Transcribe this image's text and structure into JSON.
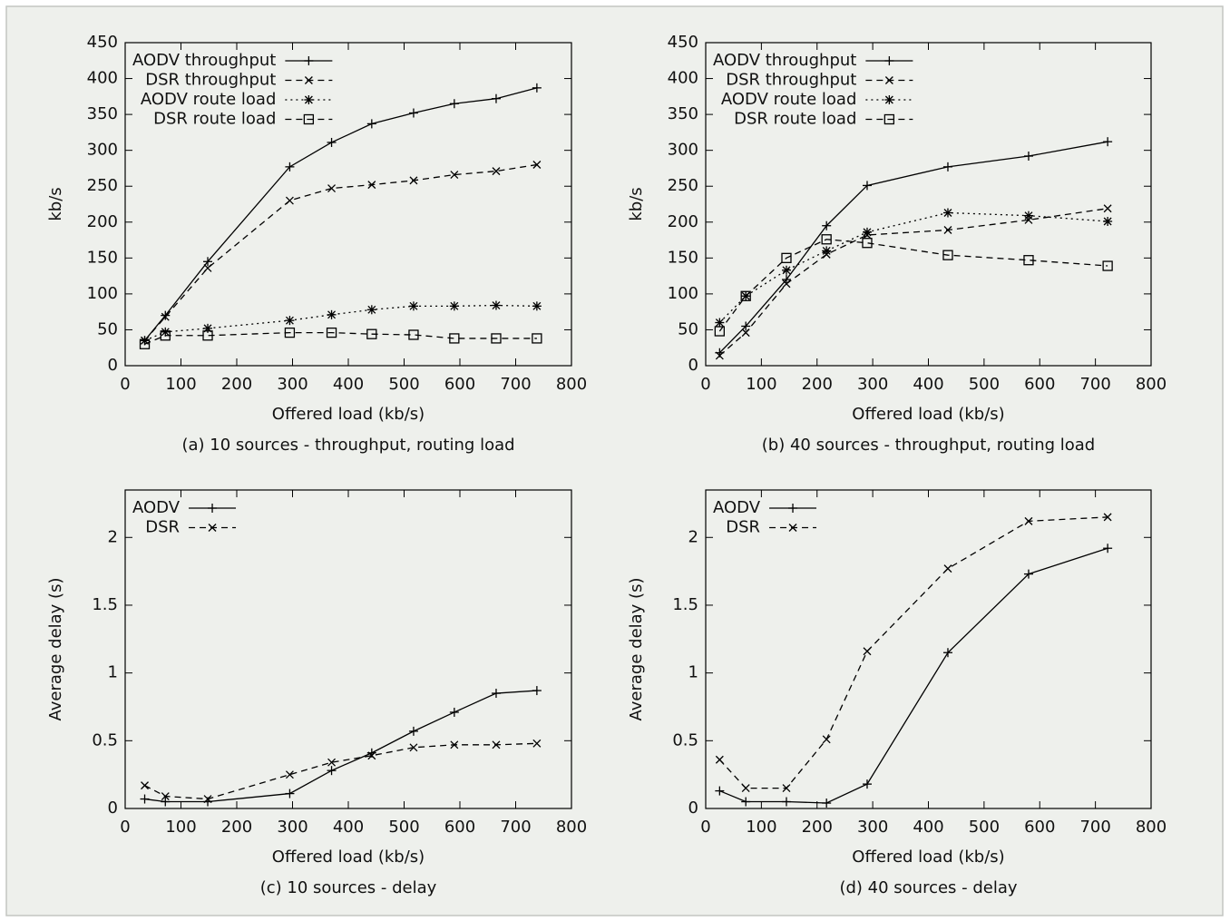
{
  "chart_data": [
    {
      "type": "line",
      "caption": "(a) 10 sources - throughput, routing load",
      "xlabel": "Offered load (kb/s)",
      "ylabel": "kb/s",
      "x": [
        35,
        72,
        148,
        295,
        370,
        442,
        517,
        590,
        665,
        738
      ],
      "series": [
        {
          "name": "AODV throughput",
          "color": "#000000",
          "dash": "solid",
          "marker": "plus",
          "values": [
            35,
            70,
            145,
            277,
            311,
            337,
            352,
            365,
            372,
            387
          ]
        },
        {
          "name": "DSR throughput",
          "color": "#000000",
          "dash": "dashed",
          "marker": "cross",
          "values": [
            35,
            68,
            136,
            230,
            247,
            252,
            258,
            266,
            271,
            280
          ]
        },
        {
          "name": "AODV route load",
          "color": "#000000",
          "dash": "dotted",
          "marker": "star",
          "values": [
            35,
            47,
            52,
            63,
            71,
            78,
            83,
            83,
            84,
            83
          ]
        },
        {
          "name": "DSR route load",
          "color": "#000000",
          "dash": "dashed",
          "marker": "square",
          "values": [
            30,
            42,
            42,
            46,
            46,
            44,
            43,
            38,
            38,
            38
          ]
        }
      ],
      "xlim": [
        0,
        800
      ],
      "xticks": [
        0,
        100,
        200,
        300,
        400,
        500,
        600,
        700,
        800
      ],
      "ylim": [
        0,
        450
      ],
      "yticks": [
        0,
        50,
        100,
        150,
        200,
        250,
        300,
        350,
        400,
        450
      ],
      "legend": "top left"
    },
    {
      "type": "line",
      "caption": "(b) 40 sources - throughput, routing load",
      "xlabel": "Offered load (kb/s)",
      "ylabel": "kb/s",
      "x": [
        25,
        72,
        145,
        217,
        290,
        435,
        580,
        722
      ],
      "series": [
        {
          "name": "AODV throughput",
          "color": "#000000",
          "dash": "solid",
          "marker": "plus",
          "values": [
            18,
            55,
            120,
            195,
            251,
            277,
            292,
            312
          ]
        },
        {
          "name": "DSR throughput",
          "color": "#000000",
          "dash": "dashed",
          "marker": "cross",
          "values": [
            14,
            46,
            114,
            155,
            182,
            189,
            203,
            219
          ]
        },
        {
          "name": "AODV route load",
          "color": "#000000",
          "dash": "dotted",
          "marker": "star",
          "values": [
            60,
            97,
            133,
            160,
            186,
            213,
            209,
            201
          ]
        },
        {
          "name": "DSR route load",
          "color": "#000000",
          "dash": "dashed",
          "marker": "square",
          "values": [
            48,
            97,
            150,
            176,
            171,
            154,
            147,
            139
          ]
        }
      ],
      "xlim": [
        0,
        800
      ],
      "xticks": [
        0,
        100,
        200,
        300,
        400,
        500,
        600,
        700,
        800
      ],
      "ylim": [
        0,
        450
      ],
      "yticks": [
        0,
        50,
        100,
        150,
        200,
        250,
        300,
        350,
        400,
        450
      ],
      "legend": "top left"
    },
    {
      "type": "line",
      "caption": "(c) 10 sources - delay",
      "xlabel": "Offered load (kb/s)",
      "ylabel": "Average delay (s)",
      "x": [
        35,
        72,
        148,
        295,
        370,
        442,
        517,
        590,
        665,
        738
      ],
      "series": [
        {
          "name": "AODV",
          "color": "#000000",
          "dash": "solid",
          "marker": "plus",
          "values": [
            0.07,
            0.05,
            0.05,
            0.11,
            0.28,
            0.41,
            0.57,
            0.71,
            0.85,
            0.87
          ]
        },
        {
          "name": "DSR",
          "color": "#000000",
          "dash": "dashed",
          "marker": "cross",
          "values": [
            0.17,
            0.09,
            0.07,
            0.25,
            0.34,
            0.39,
            0.45,
            0.47,
            0.47,
            0.48
          ]
        }
      ],
      "xlim": [
        0,
        800
      ],
      "xticks": [
        0,
        100,
        200,
        300,
        400,
        500,
        600,
        700,
        800
      ],
      "ylim": [
        0,
        2.35
      ],
      "yticks": [
        0,
        0.5,
        1,
        1.5,
        2
      ],
      "legend": "top left"
    },
    {
      "type": "line",
      "caption": "(d) 40 sources - delay",
      "xlabel": "Offered load (kb/s)",
      "ylabel": "Average delay (s)",
      "x": [
        25,
        72,
        145,
        217,
        290,
        435,
        580,
        722
      ],
      "series": [
        {
          "name": "AODV",
          "color": "#000000",
          "dash": "solid",
          "marker": "plus",
          "values": [
            0.13,
            0.05,
            0.05,
            0.04,
            0.18,
            1.15,
            1.73,
            1.92
          ]
        },
        {
          "name": "DSR",
          "color": "#000000",
          "dash": "dashed",
          "marker": "cross",
          "values": [
            0.36,
            0.15,
            0.15,
            0.51,
            1.16,
            1.77,
            2.12,
            2.15
          ]
        }
      ],
      "xlim": [
        0,
        800
      ],
      "xticks": [
        0,
        100,
        200,
        300,
        400,
        500,
        600,
        700,
        800
      ],
      "ylim": [
        0,
        2.35
      ],
      "yticks": [
        0,
        0.5,
        1,
        1.5,
        2
      ],
      "legend": "top left"
    }
  ]
}
